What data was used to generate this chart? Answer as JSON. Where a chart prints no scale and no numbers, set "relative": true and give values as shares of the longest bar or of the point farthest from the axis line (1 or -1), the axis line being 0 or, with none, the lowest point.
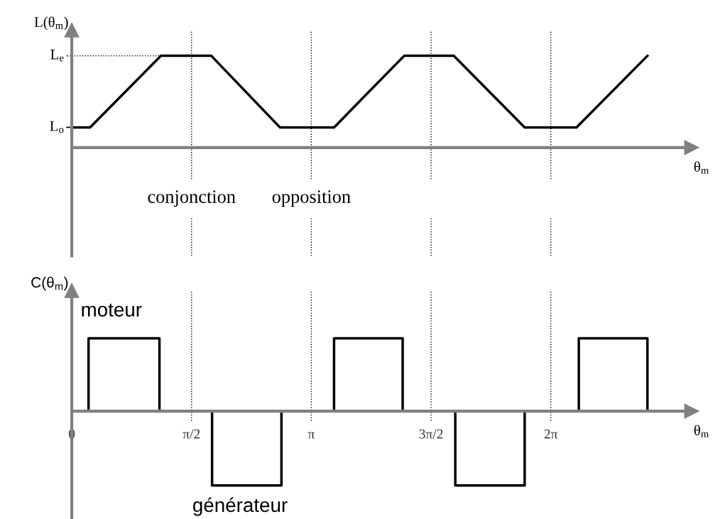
{
  "chart_data": [
    {
      "type": "line",
      "relative": true,
      "ylabel": "L(θ$_{m}$)",
      "xlabel": "θ$_{m}$",
      "x": [
        0,
        0.24,
        1.17,
        1.83,
        2.73,
        3.44,
        4.36,
        5.01,
        5.94,
        6.62,
        7.55
      ],
      "series": [
        {
          "color": "#000000",
          "values": [
            0.22,
            0.22,
            1,
            1,
            0.22,
            0.22,
            1,
            1,
            0.22,
            0.22,
            1
          ]
        }
      ],
      "xlim": [
        0,
        8.13
      ],
      "tick_labels": false,
      "grid": false,
      "legend": false,
      "marker": "none",
      "line_style": "solid",
      "ref_lines": [
        {
          "axis": "y",
          "value": 1,
          "label": "L$_{e}$",
          "line_style": "dotted",
          "color": "#000000"
        },
        {
          "axis": "y",
          "value": 0.22,
          "label": "L$_{o}$",
          "line_style": "solid",
          "color": "#000000"
        },
        {
          "axis": "x",
          "value": 1.5708,
          "label": "conjonction",
          "line_style": "dotted",
          "color": "#000000"
        },
        {
          "axis": "x",
          "value": 3.1416,
          "label": "opposition",
          "line_style": "dotted",
          "color": "#000000"
        },
        {
          "axis": "x",
          "value": 4.7124,
          "label": null,
          "line_style": "dotted",
          "color": "#000000"
        },
        {
          "axis": "x",
          "value": 6.2832,
          "label": null,
          "line_style": "dotted",
          "color": "#000000"
        }
      ]
    },
    {
      "type": "step",
      "relative": true,
      "ylabel": "C(θ$_{m}$)",
      "xlabel": "θ$_{m}$",
      "x": [
        0,
        0.22,
        1.15,
        1.84,
        2.75,
        3.44,
        4.34,
        5.03,
        5.94,
        6.65,
        7.55
      ],
      "series": [
        {
          "color": "#000000",
          "values": [
            0,
            0.98,
            0,
            -1,
            0,
            0.98,
            0,
            -1,
            0,
            0.98,
            0
          ]
        }
      ],
      "xlim": [
        0,
        8.13
      ],
      "tick_labels": "x",
      "grid": false,
      "legend": false,
      "marker": "none",
      "line_style": "solid",
      "xticks": [
        {
          "value": 0,
          "label": "0"
        },
        {
          "value": 1.5708,
          "label": "π/2"
        },
        {
          "value": 3.1416,
          "label": "π"
        },
        {
          "value": 4.7124,
          "label": "3π/2"
        },
        {
          "value": 6.2832,
          "label": "2π"
        }
      ],
      "ref_lines": [
        {
          "axis": "x",
          "value": 1.5708,
          "label": null,
          "line_style": "dotted",
          "color": "#000000"
        },
        {
          "axis": "x",
          "value": 3.1416,
          "label": null,
          "line_style": "dotted",
          "color": "#000000"
        },
        {
          "axis": "x",
          "value": 4.7124,
          "label": null,
          "line_style": "dotted",
          "color": "#000000"
        },
        {
          "axis": "x",
          "value": 6.2832,
          "label": null,
          "line_style": "dotted",
          "color": "#000000"
        }
      ],
      "annotations": [
        {
          "text": "moteur",
          "x": 0.22,
          "y": 0.98
        },
        {
          "text": "générateur",
          "x": 1.84,
          "y": -1
        }
      ]
    }
  ]
}
